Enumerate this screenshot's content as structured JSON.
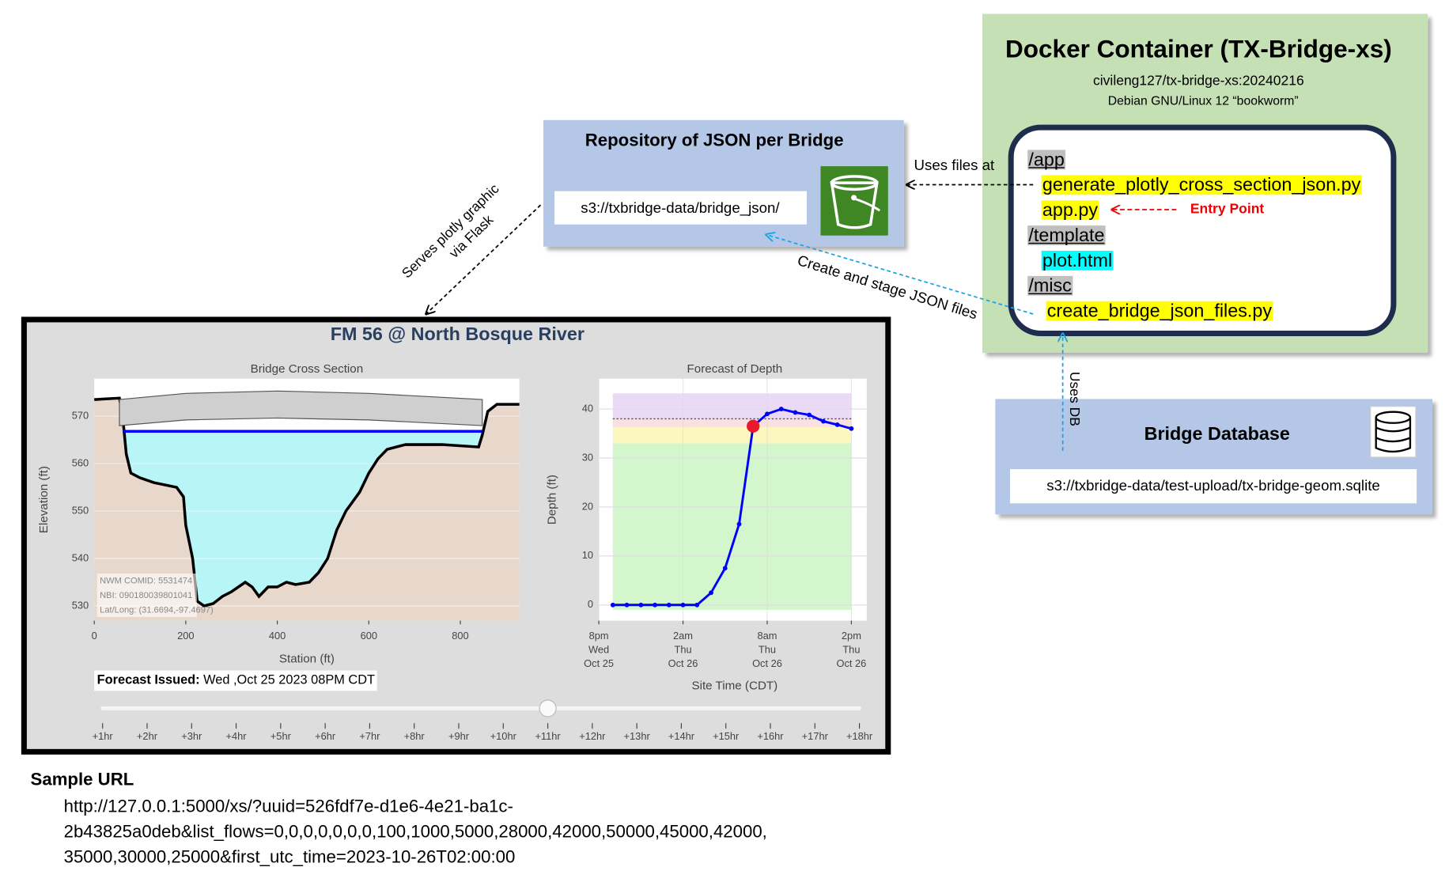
{
  "docker": {
    "title": "Docker Container (TX-Bridge-xs)",
    "image": "civileng127/tx-bridge-xs:20240216",
    "os": "Debian GNU/Linux 12 “bookworm”",
    "folders": [
      {
        "name": "/app",
        "files": [
          {
            "name": "generate_plotly_cross_section_json.py",
            "highlight": "#ffff00"
          },
          {
            "name": "app.py",
            "highlight": "#ffff00"
          }
        ]
      },
      {
        "name": "/template",
        "files": [
          {
            "name": "plot.html",
            "highlight": "#00ffff"
          }
        ]
      },
      {
        "name": "/misc",
        "files": [
          {
            "name": "create_bridge_json_files.py",
            "highlight": "#ffff00"
          }
        ]
      }
    ],
    "folder_highlight": "#bfbfbf",
    "entry_point": "Entry Point"
  },
  "repository": {
    "title": "Repository of JSON per Bridge",
    "path": "s3://txbridge-data/bridge_json/"
  },
  "database": {
    "title": "Bridge Database",
    "path": "s3://txbridge-data/test-upload/tx-bridge-geom.sqlite"
  },
  "arrows": {
    "uses_files": "Uses files at",
    "create": "Create and stage JSON files",
    "serves": [
      "Serves plotly graphic",
      "via Flask"
    ],
    "uses_db": "Uses DB"
  },
  "dashboard": {
    "title": "FM 56 @ North Bosque River",
    "forecast_issued_label": "Forecast Issued:",
    "forecast_issued": "Wed ,Oct 25 2023 08PM CDT",
    "slider": {
      "labels": [
        "+1hr",
        "+2hr",
        "+3hr",
        "+4hr",
        "+5hr",
        "+6hr",
        "+7hr",
        "+8hr",
        "+9hr",
        "+10hr",
        "+11hr",
        "+12hr",
        "+13hr",
        "+14hr",
        "+15hr",
        "+16hr",
        "+17hr",
        "+18hr"
      ],
      "active": 10
    }
  },
  "chart_data": [
    {
      "type": "cross_section",
      "title": "Bridge Cross Section",
      "xlabel": "Station (ft)",
      "ylabel": "Elevation (ft)",
      "xlim": [
        0,
        929
      ],
      "ylim": [
        526.9,
        577.9
      ],
      "xticks": [
        0,
        200,
        400,
        600,
        800
      ],
      "yticks": [
        530,
        540,
        550,
        560,
        570
      ],
      "ground": {
        "color": "#000000",
        "fill": "#e8d8cc",
        "x": [
          0,
          55,
          62,
          70,
          80,
          100,
          130,
          180,
          195,
          200,
          215,
          225,
          240,
          260,
          280,
          300,
          330,
          345,
          360,
          380,
          400,
          420,
          440,
          470,
          490,
          510,
          530,
          540,
          550,
          580,
          600,
          620,
          640,
          680,
          760,
          840,
          848,
          860,
          880,
          929
        ],
        "values": [
          573.5,
          573.8,
          570,
          562,
          558,
          557,
          556,
          555,
          553,
          547,
          540,
          531,
          530,
          530.5,
          532,
          533,
          535,
          534,
          532,
          534,
          534,
          535,
          534.5,
          535,
          537,
          540,
          546,
          548,
          550,
          554,
          558,
          561,
          563,
          564,
          564,
          563.5,
          566,
          571,
          572.5,
          572.5
        ]
      },
      "water": {
        "color": "#0000ff",
        "fill": "#b8f5f7",
        "x": [
          62,
          848
        ],
        "values": [
          566.8,
          566.8
        ]
      },
      "deck_top": {
        "color": "#555555",
        "fill": "#cfcfcf",
        "x": [
          55,
          200,
          400,
          600,
          848
        ],
        "values": [
          573.5,
          574.8,
          575.3,
          574.8,
          573.5
        ]
      },
      "low_chord": {
        "x": [
          55,
          200,
          400,
          600,
          848
        ],
        "values": [
          568,
          569.2,
          569.6,
          569.2,
          568
        ]
      },
      "annotations": [
        "NWM COMID: 5531474",
        "NBI: 090180039801041",
        "Lat/Long: (31.6694,-97.4697)"
      ]
    },
    {
      "type": "line",
      "title": "Forecast of Depth",
      "xlabel": "Site Time (CDT)",
      "ylabel": "Depth (ft)",
      "grid": true,
      "color": "#0000ff",
      "x": [
        "Oct 25 21:00",
        "Oct 25 22:00",
        "Oct 25 23:00",
        "Oct 26 00:00",
        "Oct 26 01:00",
        "Oct 26 02:00",
        "Oct 26 03:00",
        "Oct 26 04:00",
        "Oct 26 05:00",
        "Oct 26 06:00",
        "Oct 26 07:00",
        "Oct 26 08:00",
        "Oct 26 09:00",
        "Oct 26 10:00",
        "Oct 26 11:00",
        "Oct 26 12:00",
        "Oct 26 13:00",
        "Oct 26 14:00"
      ],
      "values": [
        0,
        0,
        0,
        0,
        0,
        0,
        0,
        2.5,
        7.5,
        16.5,
        36.5,
        39,
        40,
        39.3,
        38.8,
        37.5,
        36.8,
        36
      ],
      "highlight": {
        "index": 10,
        "color": "#e8192c"
      },
      "threshold": {
        "value": 38,
        "color": "#555555"
      },
      "bands": [
        {
          "from": -1,
          "to": 33,
          "color": "#ccf5c4"
        },
        {
          "from": 33,
          "to": 36.3,
          "color": "#fbf6b4"
        },
        {
          "from": 36.3,
          "to": 38,
          "color": "#f8dcdc"
        },
        {
          "from": 38,
          "to": 43.2,
          "color": "#e8d4f6"
        }
      ],
      "xlim": [
        "Oct 25 20:00",
        "Oct 26 15:06"
      ],
      "ylim": [
        -3.2,
        46.2
      ],
      "yticks": [
        0,
        10,
        20,
        30,
        40
      ],
      "xticks": [
        {
          "value": "Oct 25 20:00",
          "label": [
            "8pm",
            "Wed",
            "Oct 25"
          ]
        },
        {
          "value": "Oct 26 02:00",
          "label": [
            "2am",
            "Thu",
            "Oct 26"
          ]
        },
        {
          "value": "Oct 26 08:00",
          "label": [
            "8am",
            "Thu",
            "Oct 26"
          ]
        },
        {
          "value": "Oct 26 14:00",
          "label": [
            "2pm",
            "Thu",
            "Oct 26"
          ]
        }
      ]
    }
  ],
  "sample_url": {
    "title": "Sample URL",
    "lines": [
      "http://127.0.0.1:5000/xs/?uuid=526fdf7e-d1e6-4e21-ba1c-",
      "2b43825a0deb&list_flows=0,0,0,0,0,0,0,100,1000,5000,28000,42000,50000,45000,42000,",
      "35000,30000,25000&first_utc_time=2023-10-26T02:00:00"
    ]
  }
}
